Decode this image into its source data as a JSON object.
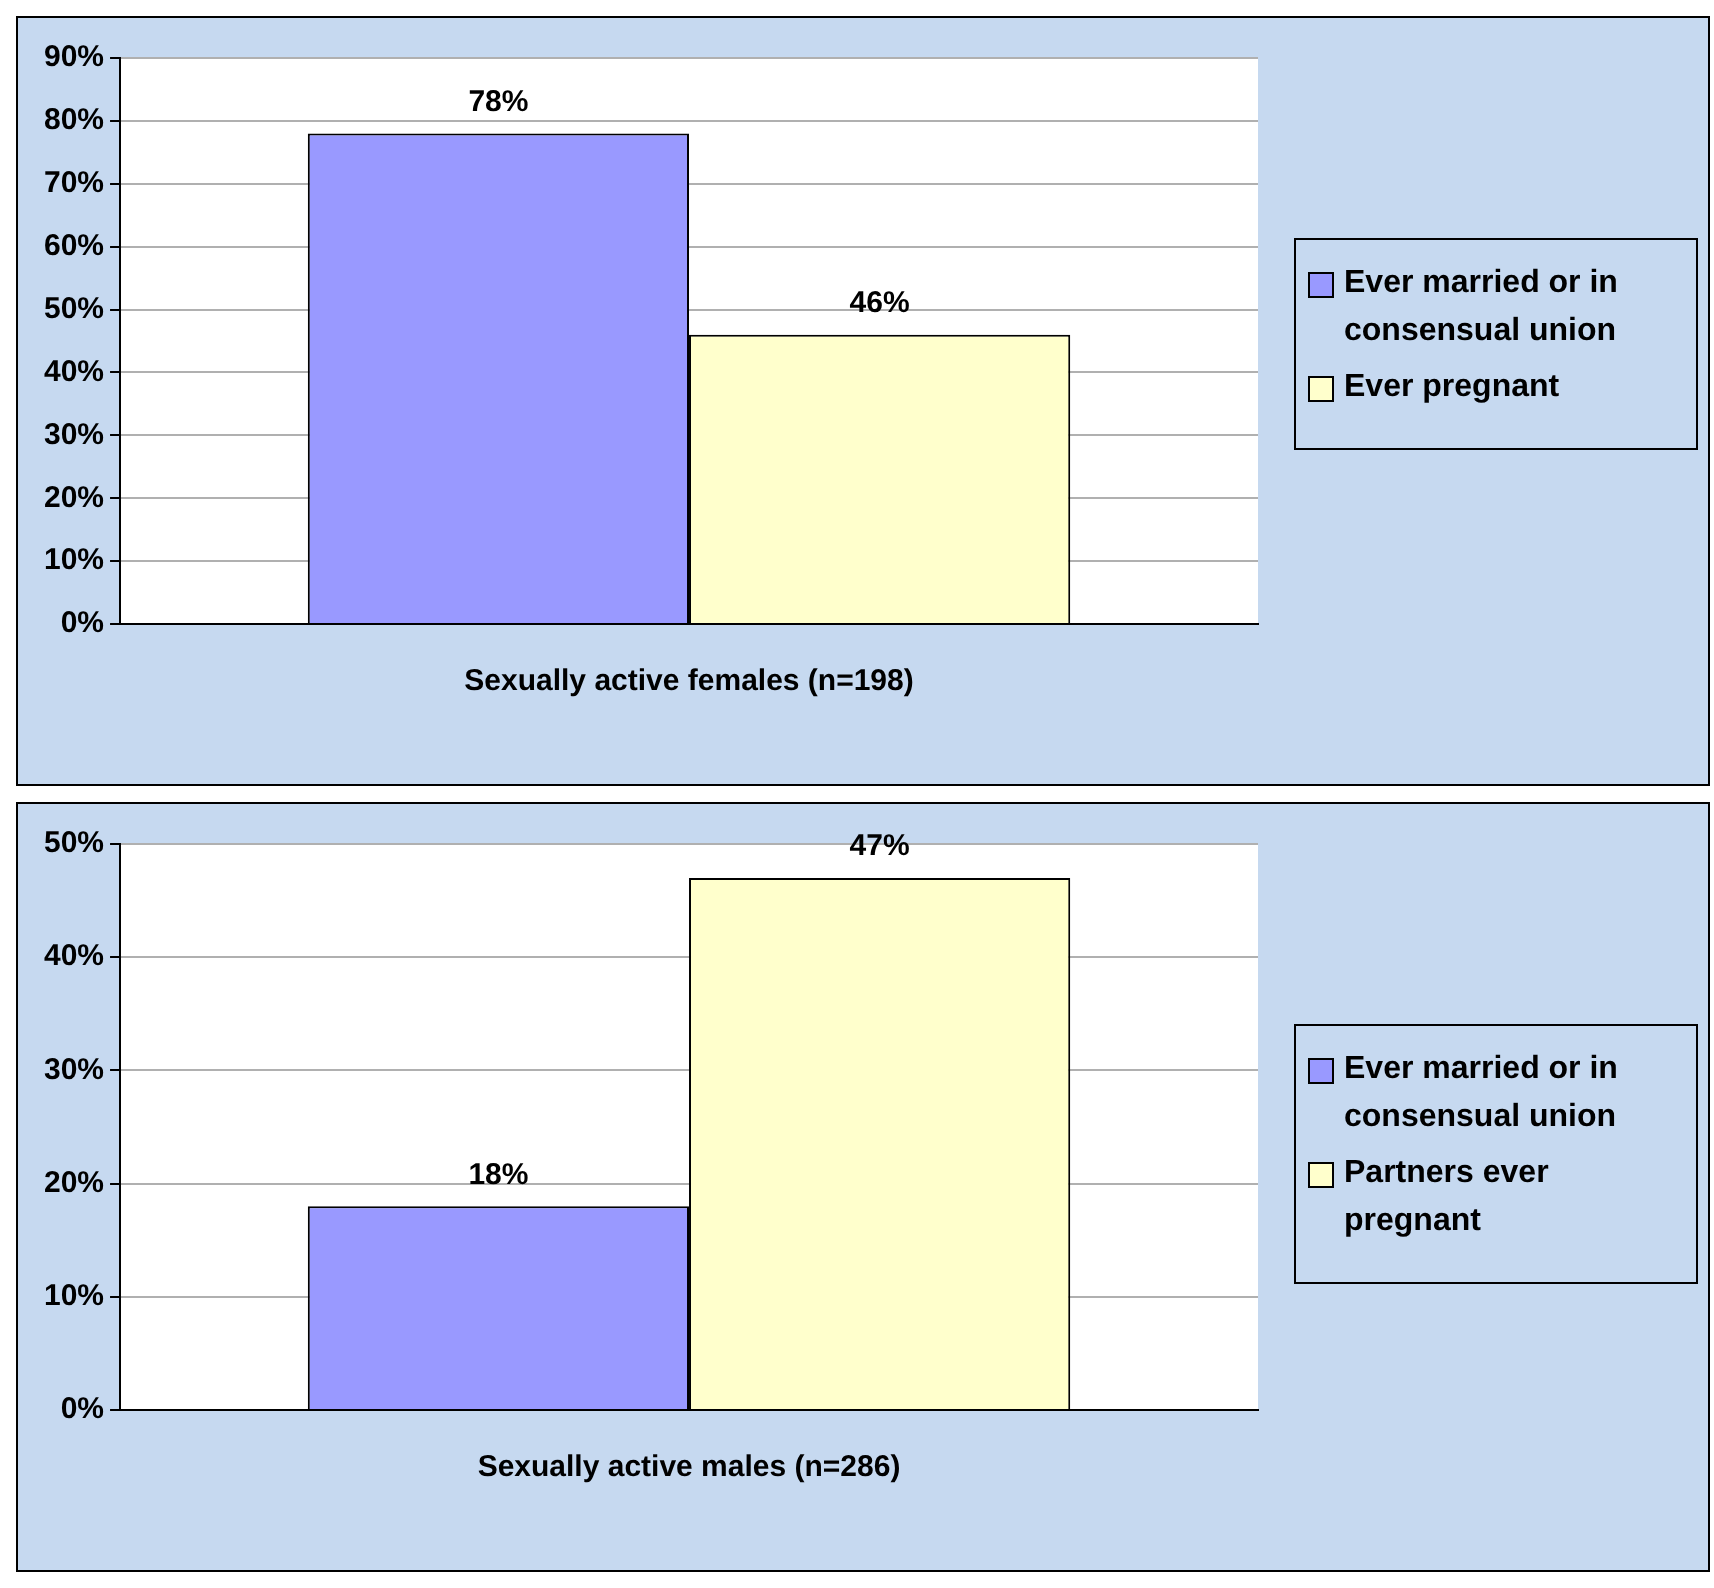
{
  "chart_data": [
    {
      "type": "bar",
      "categories": [
        "Sexually active females (n=198)"
      ],
      "series": [
        {
          "name": "Ever married or in consensual union",
          "color": "#9999ff",
          "values": [
            78
          ],
          "value_labels": [
            "78%"
          ]
        },
        {
          "name": "Ever pregnant",
          "color": "#ffffcc",
          "values": [
            46
          ],
          "value_labels": [
            "46%"
          ]
        }
      ],
      "ylim": [
        0,
        90
      ],
      "yticks": [
        {
          "value": 0,
          "label": "0%"
        },
        {
          "value": 10,
          "label": "10%"
        },
        {
          "value": 20,
          "label": "20%"
        },
        {
          "value": 30,
          "label": "30%"
        },
        {
          "value": 40,
          "label": "40%"
        },
        {
          "value": 50,
          "label": "50%"
        },
        {
          "value": 60,
          "label": "60%"
        },
        {
          "value": 70,
          "label": "70%"
        },
        {
          "value": 80,
          "label": "80%"
        },
        {
          "value": 90,
          "label": "90%"
        }
      ],
      "grid": "y",
      "legend": "right"
    },
    {
      "type": "bar",
      "categories": [
        "Sexually active males (n=286)"
      ],
      "series": [
        {
          "name": "Ever married or in consensual union",
          "color": "#9999ff",
          "values": [
            18
          ],
          "value_labels": [
            "18%"
          ]
        },
        {
          "name": "Partners ever pregnant",
          "color": "#ffffcc",
          "values": [
            47
          ],
          "value_labels": [
            "47%"
          ]
        }
      ],
      "ylim": [
        0,
        50
      ],
      "yticks": [
        {
          "value": 0,
          "label": "0%"
        },
        {
          "value": 10,
          "label": "10%"
        },
        {
          "value": 20,
          "label": "20%"
        },
        {
          "value": 30,
          "label": "30%"
        },
        {
          "value": 40,
          "label": "40%"
        },
        {
          "value": 50,
          "label": "50%"
        }
      ],
      "grid": "y",
      "legend": "right"
    }
  ]
}
